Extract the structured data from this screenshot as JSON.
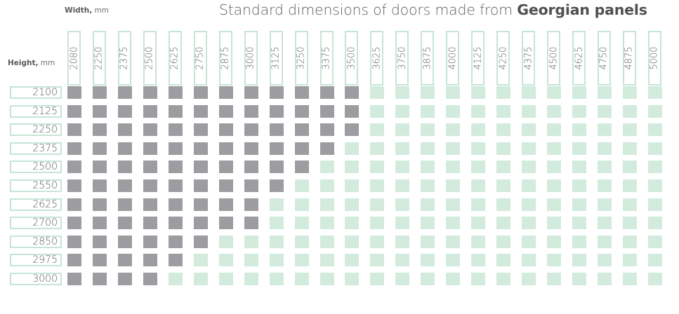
{
  "title_regular": "Standard dimensions of doors made from ",
  "title_bold": "Georgian panels",
  "width_label": {
    "bold": "Width,",
    "unit": "mm"
  },
  "height_label": {
    "bold": "Height,",
    "unit": "mm"
  },
  "colors": {
    "standard": "#9d9da1",
    "unavailable": "#d2ebdd",
    "label_border": "#c6e5d4"
  },
  "chart_data": {
    "type": "heatmap",
    "title": "Standard dimensions of doors made from Georgian panels",
    "xlabel": "Width, mm",
    "ylabel": "Height, mm",
    "x": [
      "2080",
      "2250",
      "2375",
      "2500",
      "2625",
      "2750",
      "2875",
      "3000",
      "3125",
      "3250",
      "3375",
      "3500",
      "3625",
      "3750",
      "3875",
      "4000",
      "4125",
      "4250",
      "4375",
      "4500",
      "4625",
      "4750",
      "4875",
      "5000"
    ],
    "y": [
      "2100",
      "2125",
      "2250",
      "2375",
      "2500",
      "2550",
      "2625",
      "2700",
      "2850",
      "2975",
      "3000"
    ],
    "standard_count_per_row": [
      12,
      12,
      12,
      11,
      10,
      9,
      8,
      8,
      6,
      5,
      4
    ],
    "note": "Each row marks as standard (dark) the first N widths; remaining widths are light."
  }
}
